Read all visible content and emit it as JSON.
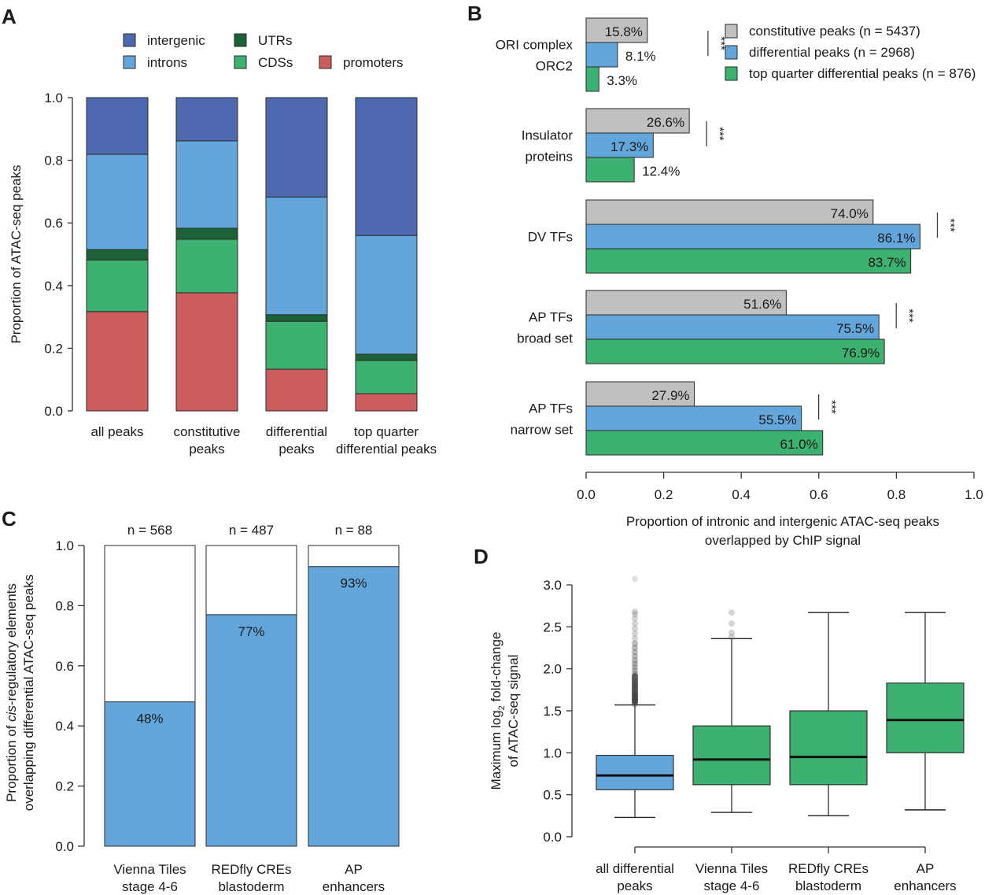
{
  "colors": {
    "intergenic": "#4f69b0",
    "introns": "#63a6dc",
    "UTRs": "#1b6236",
    "CDSs": "#3db16f",
    "promoters": "#cd5c5e",
    "constitutive": "#c0c0c0",
    "differential": "#63a6dc",
    "top_quarter": "#3db16f",
    "outlier": "#555555"
  },
  "chart_data": [
    {
      "panel": "A",
      "type": "bar",
      "stacked": true,
      "title": "",
      "xlabel": "",
      "ylabel": "Proportion of ATAC-seq peaks",
      "ylim": [
        0,
        1
      ],
      "yticks": [
        "0.0",
        "0.2",
        "0.4",
        "0.6",
        "0.8",
        "1.0"
      ],
      "categories": [
        "all peaks",
        "constitutive\npeaks",
        "differential\npeaks",
        "top quarter\ndifferential peaks"
      ],
      "legend": {
        "placement": "top",
        "entries": [
          {
            "key": "intergenic",
            "label": "intergenic"
          },
          {
            "key": "UTRs",
            "label": "UTRs"
          },
          {
            "key": "introns",
            "label": "introns"
          },
          {
            "key": "CDSs",
            "label": "CDSs"
          },
          {
            "key": "promoters",
            "label": "promoters"
          }
        ]
      },
      "series": [
        {
          "name": "promoters",
          "values": [
            0.317,
            0.377,
            0.133,
            0.055
          ]
        },
        {
          "name": "CDSs",
          "values": [
            0.165,
            0.171,
            0.153,
            0.106
          ]
        },
        {
          "name": "UTRs",
          "values": [
            0.033,
            0.035,
            0.021,
            0.02
          ]
        },
        {
          "name": "introns",
          "values": [
            0.304,
            0.279,
            0.376,
            0.379
          ]
        },
        {
          "name": "intergenic",
          "values": [
            0.181,
            0.138,
            0.317,
            0.44
          ]
        }
      ]
    },
    {
      "panel": "B",
      "type": "bar",
      "orientation": "horizontal",
      "title": "",
      "xlabel": "Proportion of intronic and intergenic ATAC-seq peaks\noverlapped by ChIP signal",
      "ylabel": "",
      "xlim": [
        0,
        1
      ],
      "xticks": [
        "0.0",
        "0.2",
        "0.4",
        "0.6",
        "0.8",
        "1.0"
      ],
      "categories": [
        "ORI complex\nORC2",
        "Insulator\nproteins",
        "DV TFs",
        "AP TFs\nbroad set",
        "AP TFs\nnarrow set"
      ],
      "legend": {
        "placement": "top-right",
        "entries": [
          {
            "key": "constitutive",
            "label": "constitutive peaks (n = 5437)"
          },
          {
            "key": "differential",
            "label": "differential peaks (n = 2968)"
          },
          {
            "key": "top_quarter",
            "label": "top quarter differential peaks (n = 876)"
          }
        ]
      },
      "series": [
        {
          "name": "constitutive peaks",
          "key": "constitutive",
          "values": [
            0.158,
            0.266,
            0.74,
            0.516,
            0.279
          ],
          "labels": [
            "15.8%",
            "26.6%",
            "74.0%",
            "51.6%",
            "27.9%"
          ]
        },
        {
          "name": "differential peaks",
          "key": "differential",
          "values": [
            0.081,
            0.173,
            0.861,
            0.755,
            0.555
          ],
          "labels": [
            "8.1%",
            "17.3%",
            "86.1%",
            "75.5%",
            "55.5%"
          ]
        },
        {
          "name": "top quarter differential peaks",
          "key": "top_quarter",
          "values": [
            0.033,
            0.124,
            0.837,
            0.769,
            0.61
          ],
          "labels": [
            "3.3%",
            "12.4%",
            "83.7%",
            "76.9%",
            "61.0%"
          ]
        }
      ],
      "significance": [
        "***",
        "***",
        "***",
        "***",
        "***"
      ]
    },
    {
      "panel": "C",
      "type": "bar",
      "stacked": true,
      "title": "",
      "xlabel": "",
      "ylabel": "Proportion of cis-regulatory elements\noverlapping differential ATAC-seq peaks",
      "ylabel_italic_part": "cis",
      "ylim": [
        0,
        1
      ],
      "yticks": [
        "0.0",
        "0.2",
        "0.4",
        "0.6",
        "0.8",
        "1.0"
      ],
      "categories": [
        "Vienna Tiles\nstage 4-6",
        "REDfly CREs\nblastoderm",
        "AP\nenhancers"
      ],
      "n_labels": [
        "n = 568",
        "n = 487",
        "n = 88"
      ],
      "values": [
        0.48,
        0.77,
        0.93
      ],
      "value_labels": [
        "48%",
        "77%",
        "93%"
      ]
    },
    {
      "panel": "D",
      "type": "boxplot",
      "title": "",
      "xlabel": "",
      "ylabel": "Maximum log2 fold-change\nof ATAC-seq signal",
      "ylim": [
        0,
        3
      ],
      "yticks": [
        "0.0",
        "0.5",
        "1.0",
        "1.5",
        "2.0",
        "2.5",
        "3.0"
      ],
      "categories": [
        "all differential\npeaks",
        "Vienna Tiles\nstage 4-6",
        "REDfly CREs\nblastoderm",
        "AP\nenhancers"
      ],
      "boxes": [
        {
          "name": "all differential peaks",
          "color_key": "differential",
          "whisker_low": 0.23,
          "q1": 0.56,
          "median": 0.73,
          "q3": 0.97,
          "whisker_high": 1.57,
          "outliers": [
            1.58,
            1.6,
            1.62,
            1.64,
            1.66,
            1.68,
            1.7,
            1.72,
            1.75,
            1.78,
            1.8,
            1.83,
            1.86,
            1.9,
            1.94,
            1.98,
            2.02,
            2.06,
            2.1,
            2.15,
            2.2,
            2.25,
            2.3,
            2.36,
            2.42,
            2.48,
            2.54,
            2.6,
            2.65,
            2.68,
            3.07
          ]
        },
        {
          "name": "Vienna Tiles stage 4-6",
          "color_key": "top_quarter",
          "whisker_low": 0.29,
          "q1": 0.62,
          "median": 0.92,
          "q3": 1.32,
          "whisker_high": 2.36,
          "outliers": [
            2.38,
            2.43,
            2.54,
            2.67
          ]
        },
        {
          "name": "REDfly CREs blastoderm",
          "color_key": "top_quarter",
          "whisker_low": 0.25,
          "q1": 0.62,
          "median": 0.95,
          "q3": 1.5,
          "whisker_high": 2.67,
          "outliers": []
        },
        {
          "name": "AP enhancers",
          "color_key": "top_quarter",
          "whisker_low": 0.32,
          "q1": 1.0,
          "median": 1.39,
          "q3": 1.83,
          "whisker_high": 2.67,
          "outliers": []
        }
      ]
    }
  ],
  "panel_labels": [
    "A",
    "B",
    "C",
    "D"
  ]
}
